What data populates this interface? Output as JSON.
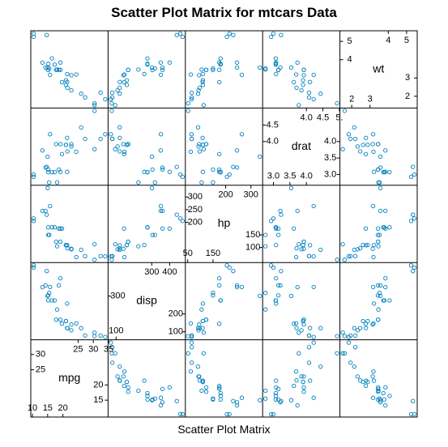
{
  "chart_data": {
    "type": "scatter",
    "subtype": "scatter-plot-matrix",
    "title": "Scatter Plot Matrix for mtcars Data",
    "xlabel": "Scatter Plot Matrix",
    "point_color": "#0080c0",
    "point_shape": "open-circle",
    "variables": [
      {
        "name": "mpg",
        "range": [
          10.4,
          33.9
        ],
        "diag_lower_ticks": [
          "10",
          "15",
          "20"
        ],
        "diag_upper_ticks": [
          "25",
          "30",
          "35"
        ],
        "diag_lower_tick_values": [
          10,
          15,
          20
        ],
        "diag_upper_tick_values": [
          25,
          30,
          35
        ],
        "side_ticks_left": [
          "35",
          "30",
          "25"
        ],
        "side_ticks_right": [
          "20",
          "15",
          "10"
        ],
        "side_tick_left_values": [
          35,
          30,
          25
        ],
        "side_tick_right_values": [
          20,
          15,
          10
        ]
      },
      {
        "name": "disp",
        "range": [
          71.1,
          472
        ],
        "diag_lower_ticks": [
          "100"
        ],
        "diag_upper_ticks": [
          "400",
          "300"
        ],
        "diag_lower_tick_values": [
          100
        ],
        "diag_upper_tick_values": [
          400,
          300
        ],
        "side_ticks_left": [
          "300"
        ],
        "side_ticks_right": [
          "200",
          "100"
        ],
        "side_tick_left_values": [
          300
        ],
        "side_tick_right_values": [
          200,
          100
        ]
      },
      {
        "name": "hp",
        "range": [
          52,
          335
        ],
        "diag_lower_ticks": [
          "50",
          "150"
        ],
        "diag_upper_ticks": [
          "200",
          "300"
        ],
        "diag_lower_tick_values": [
          50,
          150
        ],
        "diag_upper_tick_values": [
          200,
          300
        ],
        "side_ticks_left": [
          "300",
          "250",
          "200"
        ],
        "side_ticks_right": [
          "150",
          "100",
          "50"
        ],
        "side_tick_left_values": [
          300,
          250,
          200
        ],
        "side_tick_right_values": [
          150,
          100,
          50
        ]
      },
      {
        "name": "drat",
        "range": [
          2.76,
          4.93
        ],
        "diag_lower_ticks": [
          "3.0",
          "3.5",
          "4.0"
        ],
        "diag_upper_ticks": [
          "4.0",
          "4.5",
          "5."
        ],
        "diag_lower_tick_values": [
          3.0,
          3.5,
          4.0
        ],
        "diag_upper_tick_values": [
          4.0,
          4.5,
          5.0
        ],
        "side_ticks_left": [
          "5.0",
          "4.5",
          "4.0"
        ],
        "side_ticks_right": [
          "4.0",
          "3.5",
          "3.0"
        ],
        "side_tick_left_values": [
          5.0,
          4.5,
          4.0
        ],
        "side_tick_right_values": [
          4.0,
          3.5,
          3.0
        ]
      },
      {
        "name": "wt",
        "range": [
          1.513,
          5.424
        ],
        "diag_lower_ticks": [
          "2",
          "3"
        ],
        "diag_upper_ticks": [
          "4",
          "5"
        ],
        "diag_lower_tick_values": [
          2,
          3
        ],
        "diag_upper_tick_values": [
          4,
          5
        ],
        "side_ticks_left": [
          "5",
          "4"
        ],
        "side_ticks_right": [
          "3",
          "2"
        ],
        "side_tick_left_values": [
          5,
          4
        ],
        "side_tick_right_values": [
          3,
          2
        ]
      }
    ],
    "observations": {
      "mpg": [
        21,
        21,
        22.8,
        21.4,
        18.7,
        18.1,
        14.3,
        24.4,
        22.8,
        19.2,
        17.8,
        16.4,
        17.3,
        15.2,
        10.4,
        10.4,
        14.7,
        32.4,
        30.4,
        33.9,
        21.5,
        15.5,
        15.2,
        13.3,
        19.2,
        27.3,
        26,
        30.4,
        15.8,
        19.7,
        15,
        21.4
      ],
      "disp": [
        160,
        160,
        108,
        258,
        360,
        225,
        360,
        146.7,
        140.8,
        167.6,
        167.6,
        275.8,
        275.8,
        275.8,
        472,
        460,
        440,
        78.7,
        75.7,
        71.1,
        120.1,
        318,
        304,
        350,
        400,
        79,
        120.3,
        95.1,
        351,
        145,
        301,
        121
      ],
      "hp": [
        110,
        110,
        93,
        110,
        175,
        105,
        245,
        62,
        95,
        123,
        123,
        180,
        180,
        180,
        205,
        215,
        230,
        66,
        52,
        65,
        97,
        150,
        150,
        245,
        175,
        66,
        91,
        113,
        264,
        175,
        335,
        109
      ],
      "drat": [
        3.9,
        3.9,
        3.85,
        3.08,
        3.15,
        2.76,
        3.21,
        3.69,
        3.92,
        3.92,
        3.92,
        3.07,
        3.07,
        3.07,
        2.93,
        3,
        3.23,
        4.08,
        4.93,
        4.22,
        3.7,
        2.76,
        3.15,
        3.73,
        3.08,
        4.08,
        4.43,
        3.77,
        4.22,
        3.62,
        3.54,
        4.11
      ],
      "wt": [
        2.62,
        2.875,
        2.32,
        3.215,
        3.44,
        3.46,
        3.57,
        3.19,
        3.15,
        3.44,
        3.44,
        4.07,
        3.73,
        3.78,
        5.25,
        5.424,
        5.345,
        2.2,
        1.615,
        1.835,
        2.465,
        3.52,
        3.435,
        3.84,
        3.845,
        1.935,
        2.14,
        1.513,
        3.17,
        2.77,
        3.57,
        2.78
      ]
    }
  }
}
